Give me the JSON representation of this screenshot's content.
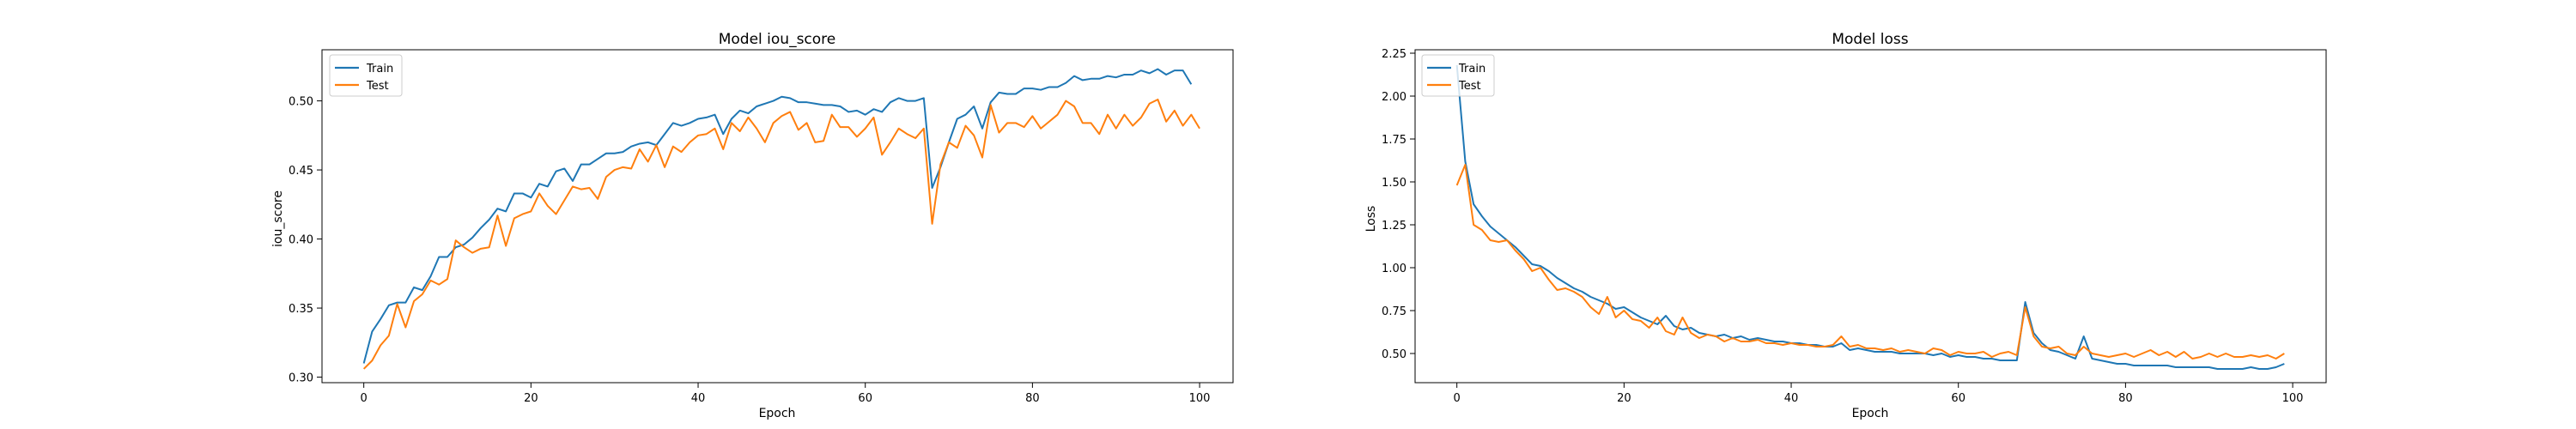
{
  "chart_data": [
    {
      "type": "line",
      "title": "Model iou_score",
      "xlabel": "Epoch",
      "ylabel": "iou_score",
      "xlim": [
        -5,
        104
      ],
      "ylim": [
        0.296,
        0.537
      ],
      "x_ticks": [
        0,
        20,
        40,
        60,
        80,
        100
      ],
      "y_ticks": [
        0.3,
        0.35,
        0.4,
        0.45,
        0.5
      ],
      "x_tick_labels": [
        "0",
        "20",
        "40",
        "60",
        "80",
        "100"
      ],
      "y_tick_labels": [
        "0.30",
        "0.35",
        "0.40",
        "0.45",
        "0.50"
      ],
      "grid": false,
      "legend_position": "upper left",
      "series": [
        {
          "name": "Train",
          "color": "#1f77b4",
          "values": [
            0.31,
            0.333,
            0.342,
            0.352,
            0.354,
            0.354,
            0.365,
            0.363,
            0.373,
            0.387,
            0.387,
            0.394,
            0.396,
            0.401,
            0.408,
            0.414,
            0.422,
            0.42,
            0.433,
            0.433,
            0.43,
            0.44,
            0.438,
            0.449,
            0.451,
            0.442,
            0.454,
            0.454,
            0.458,
            0.462,
            0.462,
            0.463,
            0.467,
            0.469,
            0.47,
            0.468,
            0.476,
            0.484,
            0.482,
            0.484,
            0.487,
            0.488,
            0.49,
            0.476,
            0.487,
            0.493,
            0.491,
            0.496,
            0.498,
            0.5,
            0.503,
            0.502,
            0.499,
            0.499,
            0.498,
            0.497,
            0.497,
            0.496,
            0.492,
            0.493,
            0.49,
            0.494,
            0.492,
            0.499,
            0.502,
            0.5,
            0.5,
            0.502,
            0.437,
            0.452,
            0.47,
            0.487,
            0.49,
            0.496,
            0.48,
            0.499,
            0.506,
            0.505,
            0.505,
            0.509,
            0.509,
            0.508,
            0.51,
            0.51,
            0.513,
            0.518,
            0.515,
            0.516,
            0.516,
            0.518,
            0.517,
            0.519,
            0.519,
            0.522,
            0.52,
            0.523,
            0.519,
            0.522,
            0.522,
            0.512
          ]
        },
        {
          "name": "Test",
          "color": "#ff7f0e",
          "values": [
            0.306,
            0.312,
            0.323,
            0.33,
            0.353,
            0.336,
            0.355,
            0.36,
            0.37,
            0.367,
            0.371,
            0.399,
            0.394,
            0.39,
            0.393,
            0.394,
            0.417,
            0.395,
            0.415,
            0.418,
            0.42,
            0.433,
            0.424,
            0.418,
            0.428,
            0.438,
            0.436,
            0.437,
            0.429,
            0.445,
            0.45,
            0.452,
            0.451,
            0.465,
            0.456,
            0.468,
            0.452,
            0.467,
            0.463,
            0.47,
            0.475,
            0.476,
            0.48,
            0.465,
            0.484,
            0.478,
            0.488,
            0.48,
            0.47,
            0.484,
            0.489,
            0.492,
            0.479,
            0.484,
            0.47,
            0.471,
            0.49,
            0.481,
            0.481,
            0.474,
            0.48,
            0.488,
            0.461,
            0.47,
            0.48,
            0.476,
            0.473,
            0.48,
            0.411,
            0.454,
            0.47,
            0.466,
            0.482,
            0.475,
            0.459,
            0.497,
            0.477,
            0.484,
            0.484,
            0.481,
            0.489,
            0.48,
            0.485,
            0.49,
            0.5,
            0.496,
            0.484,
            0.484,
            0.476,
            0.49,
            0.48,
            0.49,
            0.482,
            0.488,
            0.498,
            0.501,
            0.485,
            0.493,
            0.482,
            0.49,
            0.48
          ]
        }
      ]
    },
    {
      "type": "line",
      "title": "Model loss",
      "xlabel": "Epoch",
      "ylabel": "Loss",
      "xlim": [
        -5,
        104
      ],
      "ylim": [
        0.33,
        2.27
      ],
      "x_ticks": [
        0,
        20,
        40,
        60,
        80,
        100
      ],
      "y_ticks": [
        0.5,
        0.75,
        1.0,
        1.25,
        1.5,
        1.75,
        2.0,
        2.25
      ],
      "x_tick_labels": [
        "0",
        "20",
        "40",
        "60",
        "80",
        "100"
      ],
      "y_tick_labels": [
        "0.50",
        "0.75",
        "1.00",
        "1.25",
        "1.50",
        "1.75",
        "2.00",
        "2.25"
      ],
      "grid": false,
      "legend_position": "upper left",
      "series": [
        {
          "name": "Train",
          "color": "#1f77b4",
          "values": [
            2.18,
            1.62,
            1.37,
            1.3,
            1.24,
            1.2,
            1.16,
            1.12,
            1.07,
            1.02,
            1.01,
            0.98,
            0.94,
            0.91,
            0.88,
            0.86,
            0.83,
            0.81,
            0.79,
            0.76,
            0.77,
            0.74,
            0.71,
            0.69,
            0.67,
            0.72,
            0.66,
            0.64,
            0.65,
            0.62,
            0.61,
            0.6,
            0.61,
            0.59,
            0.6,
            0.58,
            0.59,
            0.58,
            0.57,
            0.57,
            0.56,
            0.56,
            0.55,
            0.55,
            0.54,
            0.54,
            0.56,
            0.52,
            0.53,
            0.52,
            0.51,
            0.51,
            0.51,
            0.5,
            0.5,
            0.5,
            0.5,
            0.49,
            0.5,
            0.48,
            0.49,
            0.48,
            0.48,
            0.47,
            0.47,
            0.46,
            0.46,
            0.46,
            0.8,
            0.62,
            0.56,
            0.52,
            0.51,
            0.49,
            0.47,
            0.6,
            0.47,
            0.46,
            0.45,
            0.44,
            0.44,
            0.43,
            0.43,
            0.43,
            0.43,
            0.43,
            0.42,
            0.42,
            0.42,
            0.42,
            0.42,
            0.41,
            0.41,
            0.41,
            0.41,
            0.42,
            0.41,
            0.41,
            0.42,
            0.44
          ]
        },
        {
          "name": "Test",
          "color": "#ff7f0e",
          "values": [
            1.48,
            1.6,
            1.25,
            1.22,
            1.16,
            1.15,
            1.16,
            1.1,
            1.05,
            0.98,
            1.0,
            0.93,
            0.87,
            0.88,
            0.86,
            0.83,
            0.77,
            0.73,
            0.83,
            0.71,
            0.75,
            0.7,
            0.69,
            0.65,
            0.71,
            0.63,
            0.61,
            0.71,
            0.62,
            0.59,
            0.61,
            0.6,
            0.57,
            0.59,
            0.57,
            0.57,
            0.58,
            0.56,
            0.56,
            0.55,
            0.56,
            0.55,
            0.55,
            0.54,
            0.54,
            0.55,
            0.6,
            0.54,
            0.55,
            0.53,
            0.53,
            0.52,
            0.53,
            0.51,
            0.52,
            0.51,
            0.5,
            0.53,
            0.52,
            0.49,
            0.51,
            0.5,
            0.5,
            0.51,
            0.48,
            0.5,
            0.51,
            0.49,
            0.77,
            0.6,
            0.54,
            0.53,
            0.54,
            0.5,
            0.49,
            0.54,
            0.5,
            0.49,
            0.48,
            0.49,
            0.5,
            0.48,
            0.5,
            0.52,
            0.49,
            0.51,
            0.48,
            0.51,
            0.47,
            0.48,
            0.5,
            0.48,
            0.5,
            0.48,
            0.48,
            0.49,
            0.48,
            0.49,
            0.47,
            0.5
          ]
        }
      ]
    }
  ]
}
